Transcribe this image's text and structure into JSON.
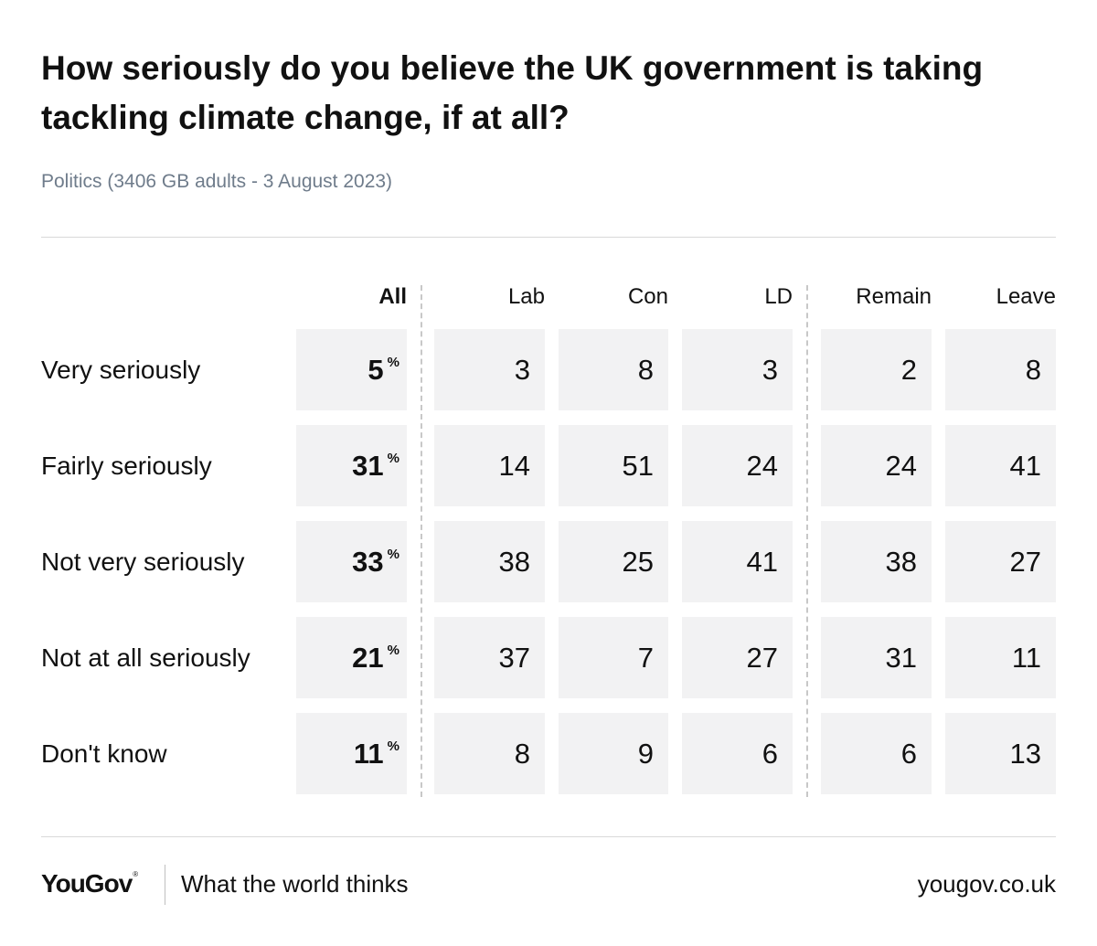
{
  "title": "How seriously do you believe the UK government is taking tackling climate change, if at all?",
  "subtitle": "Politics (3406 GB adults - 3 August 2023)",
  "chart_data": {
    "type": "table",
    "title": "How seriously do you believe the UK government is taking tackling climate change, if at all?",
    "subtitle": "Politics (3406 GB adults - 3 August 2023)",
    "columns": [
      "All",
      "Lab",
      "Con",
      "LD",
      "Remain",
      "Leave"
    ],
    "percent_symbol": "%",
    "rows": [
      {
        "label": "Very seriously",
        "values": [
          "5",
          "3",
          "8",
          "3",
          "2",
          "8"
        ]
      },
      {
        "label": "Fairly seriously",
        "values": [
          "31",
          "14",
          "51",
          "24",
          "24",
          "41"
        ]
      },
      {
        "label": "Not very seriously",
        "values": [
          "33",
          "38",
          "25",
          "41",
          "38",
          "27"
        ]
      },
      {
        "label": "Not at all seriously",
        "values": [
          "21",
          "37",
          "7",
          "27",
          "31",
          "11"
        ]
      },
      {
        "label": "Don't know",
        "values": [
          "11",
          "8",
          "9",
          "6",
          "6",
          "13"
        ]
      }
    ]
  },
  "footer": {
    "logo_text": "YouGov",
    "logo_mark": "®",
    "tagline": "What the world thinks",
    "website": "yougov.co.uk"
  }
}
